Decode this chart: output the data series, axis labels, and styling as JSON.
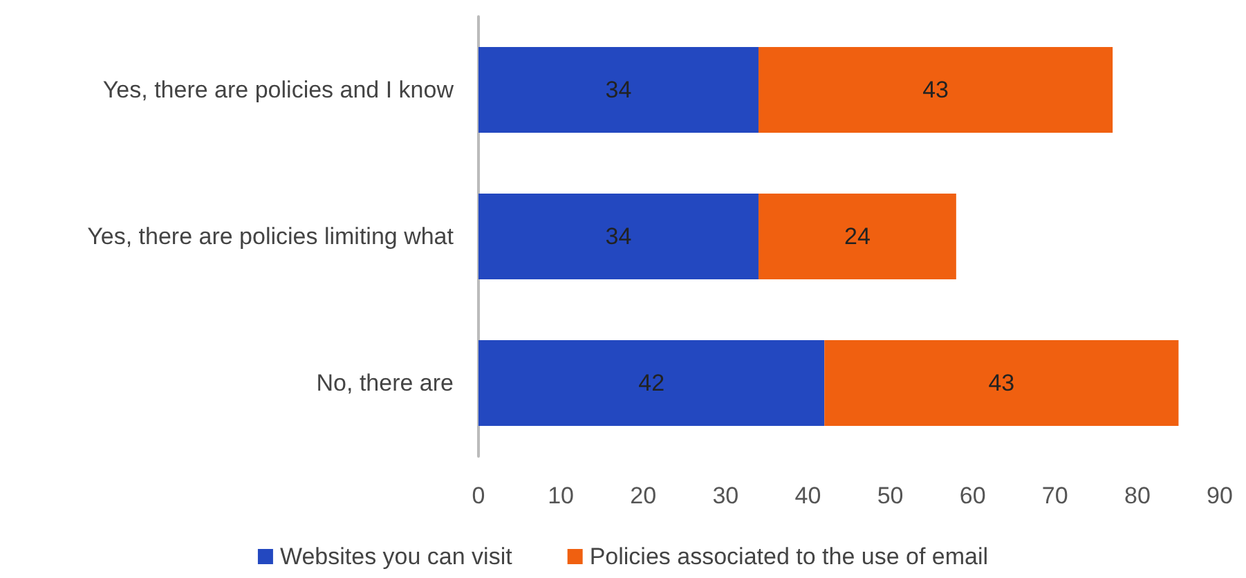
{
  "chart_data": {
    "type": "bar",
    "orientation": "horizontal",
    "stacked": true,
    "categories": [
      "Yes, there are policies and I know",
      "Yes, there are policies limiting what",
      "No, there are"
    ],
    "series": [
      {
        "name": "Websites you can visit",
        "color": "#2348c0",
        "values": [
          34,
          34,
          42
        ]
      },
      {
        "name": "Policies associated to the use of email",
        "color": "#f06010",
        "values": [
          43,
          24,
          43
        ]
      }
    ],
    "xlim": [
      0,
      90
    ],
    "xticks": [
      0,
      10,
      20,
      30,
      40,
      50,
      60,
      70,
      80,
      90
    ],
    "data_labels": true,
    "grid": false,
    "legend": "bottom"
  }
}
